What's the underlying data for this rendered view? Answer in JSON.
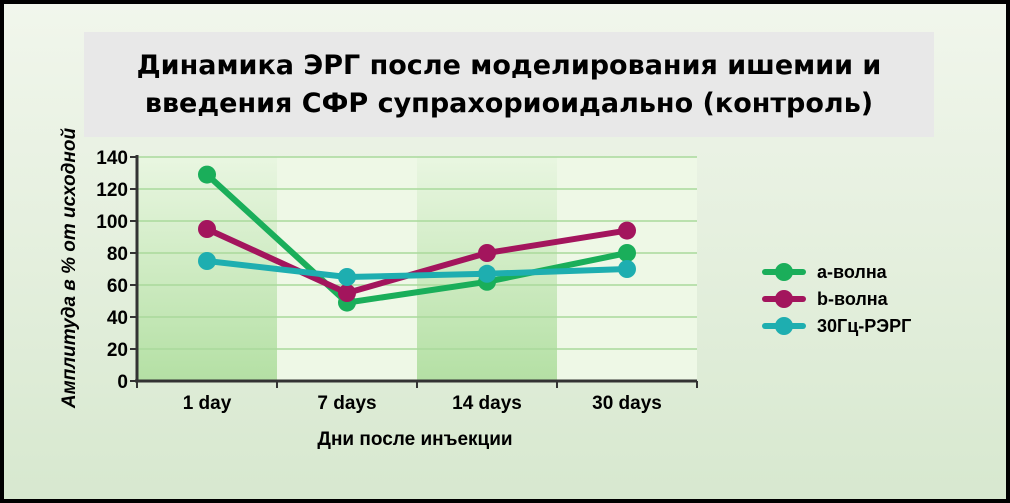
{
  "title": "Динамика ЭРГ после моделирования ишемии и введения СФР супрахориоидально (контроль)",
  "chart_data": {
    "type": "line",
    "title": "Динамика ЭРГ после моделирования ишемии и введения СФР супрахориоидально (контроль)",
    "xlabel": "Дни после инъекции",
    "ylabel": "Амплитуда в % от исходной",
    "categories": [
      "1 day",
      "7 days",
      "14 days",
      "30 days"
    ],
    "ylim": [
      0,
      140
    ],
    "yticks": [
      0,
      20,
      40,
      60,
      80,
      100,
      120,
      140
    ],
    "grid": true,
    "legend_position": "right",
    "series": [
      {
        "name": "a-волна",
        "values": [
          129,
          49,
          62,
          80
        ],
        "color": "#1aae5a"
      },
      {
        "name": "b-волна",
        "values": [
          95,
          55,
          80,
          94
        ],
        "color": "#a3155d"
      },
      {
        "name": "30Гц-РЭРГ",
        "values": [
          75,
          65,
          67,
          70
        ],
        "color": "#1eaeb0"
      }
    ]
  }
}
